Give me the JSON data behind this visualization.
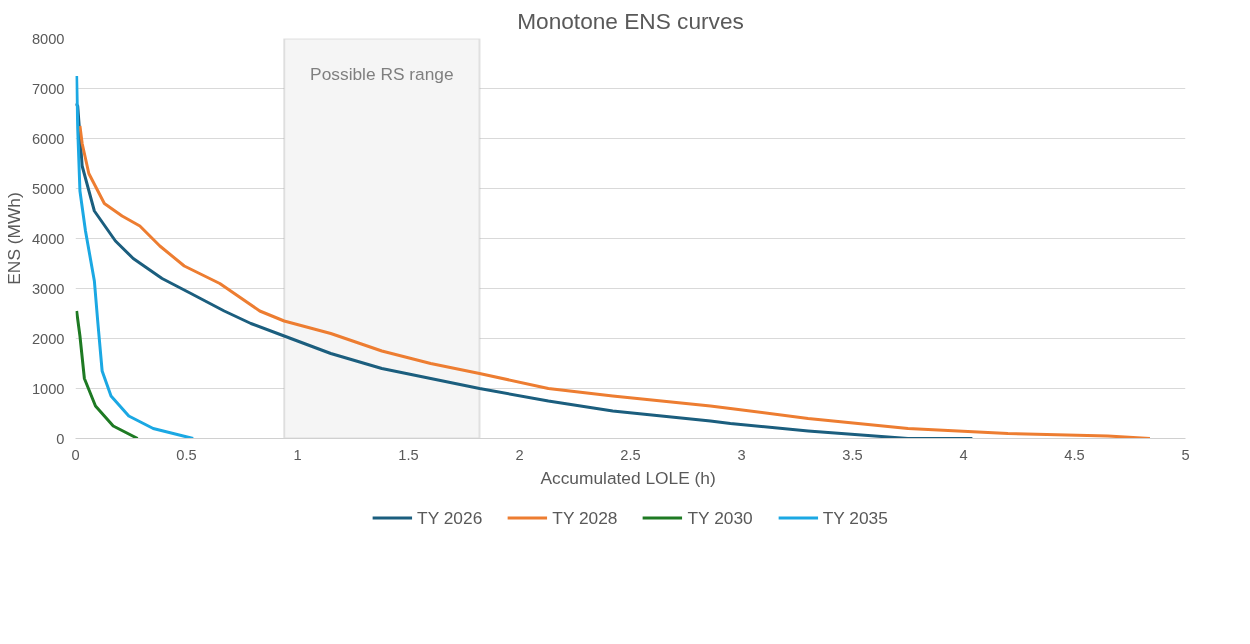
{
  "chart_data": {
    "type": "line",
    "title": "Monotone ENS curves",
    "xlabel": "Accumulated LOLE  (h)",
    "ylabel": "ENS (MWh)",
    "xlim": [
      0,
      5
    ],
    "xticks": [
      0,
      0.5,
      1,
      1.5,
      2,
      2.5,
      3,
      3.5,
      4,
      4.5,
      5
    ],
    "ylim": [
      0,
      8000
    ],
    "yticks": [
      0,
      1000,
      2000,
      3000,
      4000,
      5000,
      6000,
      7000,
      8000
    ],
    "grid": "y",
    "legend": "bottom",
    "marker": "none",
    "line_style": "solid",
    "bands": [
      {
        "axis": "x",
        "from": 0.94,
        "to": 1.82,
        "label": "Possible RS range",
        "color": "#f5f5f5"
      }
    ],
    "series": [
      {
        "name": "TY 2026",
        "color": "#1b5e7e",
        "x": [
          0,
          0.01,
          0.03,
          0.085,
          0.18,
          0.26,
          0.39,
          0.52,
          0.67,
          0.79,
          0.94,
          1.15,
          1.38,
          1.6,
          1.82,
          2.13,
          2.42,
          2.86,
          2.95,
          3.3,
          3.75,
          4.04
        ],
        "values": [
          6700,
          6650,
          5450,
          4550,
          3950,
          3600,
          3200,
          2900,
          2550,
          2300,
          2050,
          1700,
          1400,
          1200,
          1000,
          750,
          550,
          350,
          300,
          150,
          0,
          0
        ]
      },
      {
        "name": "TY 2028",
        "color": "#ed7d31",
        "x": [
          0.02,
          0.03,
          0.06,
          0.13,
          0.21,
          0.29,
          0.38,
          0.49,
          0.65,
          0.83,
          0.94,
          1.15,
          1.38,
          1.6,
          1.82,
          2.13,
          2.42,
          2.86,
          2.95,
          3.3,
          3.75,
          4.2,
          4.65,
          4.84
        ],
        "values": [
          6250,
          5900,
          5300,
          4700,
          4450,
          4250,
          3850,
          3450,
          3100,
          2550,
          2350,
          2100,
          1750,
          1500,
          1300,
          1000,
          850,
          650,
          600,
          400,
          200,
          100,
          50,
          0
        ]
      },
      {
        "name": "TY 2030",
        "color": "#1e7a23",
        "x": [
          0.005,
          0.02,
          0.04,
          0.09,
          0.17,
          0.28
        ],
        "values": [
          2550,
          2050,
          1200,
          650,
          250,
          0
        ]
      },
      {
        "name": "TY 2035",
        "color": "#1ba8e3",
        "x": [
          0.005,
          0.01,
          0.02,
          0.045,
          0.085,
          0.1,
          0.12,
          0.16,
          0.24,
          0.35,
          0.53
        ],
        "values": [
          7250,
          6200,
          4950,
          4150,
          3150,
          2350,
          1350,
          850,
          450,
          200,
          0
        ]
      }
    ]
  }
}
